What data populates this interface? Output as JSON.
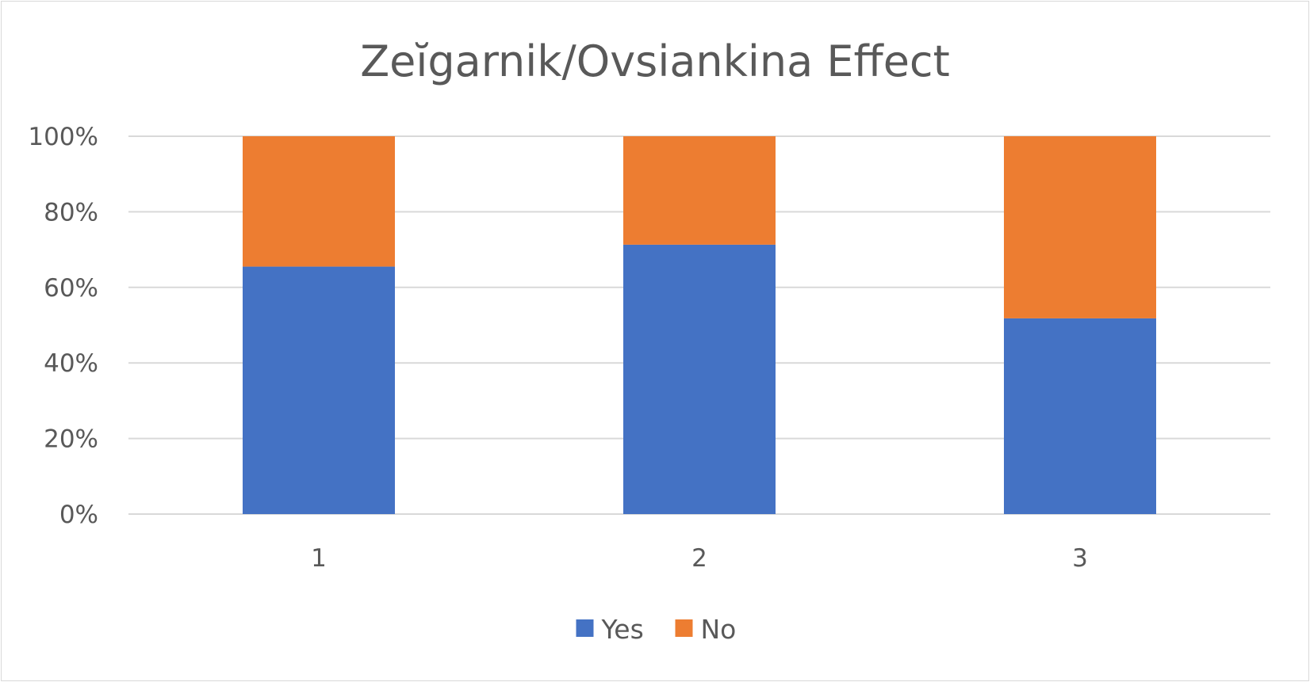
{
  "chart_data": {
    "type": "bar",
    "stacked": true,
    "percent_stacked": true,
    "title": "Zeĭgarnik/Ovsiankina Effect",
    "categories": [
      "1",
      "2",
      "3"
    ],
    "series": [
      {
        "name": "Yes",
        "values": [
          65.5,
          71.3,
          51.8
        ],
        "color": "#4472C4"
      },
      {
        "name": "No",
        "values": [
          34.5,
          28.7,
          48.2
        ],
        "color": "#ED7D31"
      }
    ],
    "ylim": [
      0,
      100
    ],
    "yticks": [
      "0%",
      "20%",
      "40%",
      "60%",
      "80%",
      "100%"
    ],
    "grid": true,
    "legend_position": "bottom"
  },
  "colors": {
    "grid": "#d9d9d9",
    "text": "#595959",
    "border": "#d9d9d9"
  }
}
